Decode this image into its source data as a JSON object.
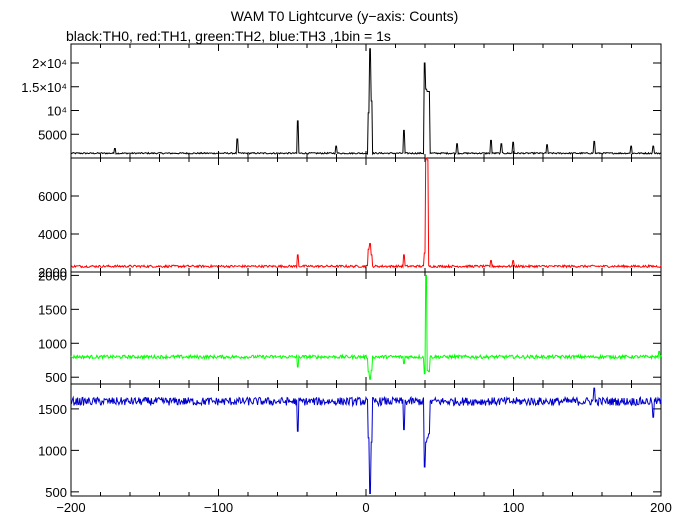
{
  "title": "WAM T0 Lightcurve (y−axis: Counts)",
  "subtitle": "black:TH0, red:TH1, green:TH2, blue:TH3 ,1bin = 1s",
  "chart_data": [
    {
      "type": "line",
      "series": [
        {
          "color": "#000000",
          "baseline": 1000,
          "noise": 150,
          "spikes": [
            [
              -170,
              2000
            ],
            [
              -87,
              4000
            ],
            [
              -46,
              7800
            ],
            [
              -20,
              2500
            ],
            [
              2,
              9500
            ],
            [
              3,
              23000
            ],
            [
              4,
              12000
            ],
            [
              26,
              5800
            ],
            [
              40,
              20000
            ],
            [
              41,
              14500
            ],
            [
              42,
              14000
            ],
            [
              43,
              14000
            ],
            [
              62,
              3000
            ],
            [
              85,
              3700
            ],
            [
              92,
              3000
            ],
            [
              100,
              3300
            ],
            [
              123,
              2800
            ],
            [
              155,
              3500
            ],
            [
              180,
              2500
            ],
            [
              195,
              2500
            ]
          ]
        }
      ],
      "xlim": [
        -200,
        200
      ],
      "ylim": [
        0,
        24000
      ],
      "yticks": [
        5000,
        10000,
        15000,
        20000
      ],
      "ytick_labels": [
        "5000",
        "10⁴",
        "1.5×10⁴",
        "2×10⁴"
      ],
      "grid": false
    },
    {
      "type": "line",
      "series": [
        {
          "color": "#ff0000",
          "baseline": 2300,
          "noise": 60,
          "spikes": [
            [
              -46,
              2900
            ],
            [
              2,
              3200
            ],
            [
              3,
              3500
            ],
            [
              4,
              2900
            ],
            [
              26,
              2900
            ],
            [
              40,
              3000
            ],
            [
              41,
              8000
            ],
            [
              42,
              7900
            ],
            [
              85,
              2600
            ],
            [
              100,
              2600
            ]
          ]
        }
      ],
      "xlim": [
        -200,
        200
      ],
      "ylim": [
        2000,
        8000
      ],
      "yticks": [
        2000,
        4000,
        6000
      ],
      "ytick_labels": [
        "2000",
        "4000",
        "6000"
      ],
      "grid": false
    },
    {
      "type": "line",
      "series": [
        {
          "color": "#00ff00",
          "baseline": 800,
          "noise": 25,
          "spikes": [
            [
              -46,
              650
            ],
            [
              2,
              580
            ],
            [
              3,
              470
            ],
            [
              4,
              600
            ],
            [
              26,
              700
            ],
            [
              40,
              550
            ],
            [
              41,
              2000
            ],
            [
              42,
              600
            ],
            [
              43,
              580
            ],
            [
              199,
              880
            ]
          ]
        }
      ],
      "xlim": [
        -200,
        200
      ],
      "ylim": [
        400,
        2050
      ],
      "yticks": [
        500,
        1000,
        1500,
        2000
      ],
      "ytick_labels": [
        "500",
        "1000",
        "1500",
        "2000"
      ],
      "grid": false
    },
    {
      "type": "line",
      "series": [
        {
          "color": "#0000cc",
          "baseline": 1590,
          "noise": 50,
          "spikes": [
            [
              -46,
              1230
            ],
            [
              2,
              1150
            ],
            [
              3,
              480
            ],
            [
              4,
              1100
            ],
            [
              26,
              1250
            ],
            [
              40,
              800
            ],
            [
              41,
              1100
            ],
            [
              42,
              1150
            ],
            [
              43,
              1200
            ],
            [
              155,
              1750
            ],
            [
              195,
              1400
            ]
          ]
        }
      ],
      "xlim": [
        -200,
        200
      ],
      "ylim": [
        450,
        1800
      ],
      "yticks": [
        500,
        1000,
        1500
      ],
      "ytick_labels": [
        "500",
        "1000",
        "1500"
      ],
      "xticks": [
        -200,
        -100,
        0,
        100,
        200
      ],
      "xtick_labels": [
        "−200",
        "−100",
        "0",
        "100",
        "200"
      ],
      "grid": false
    }
  ]
}
